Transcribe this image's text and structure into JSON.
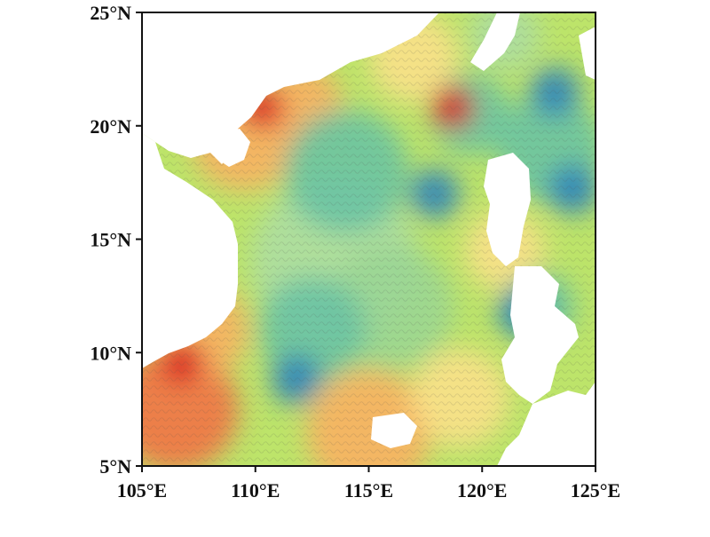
{
  "figure": {
    "type": "contour-map",
    "colormap": "jet",
    "xaxis": {
      "range": [
        105,
        125
      ],
      "unit": "°E",
      "ticks": [
        {
          "value": 105,
          "label": "105°E"
        },
        {
          "value": 110,
          "label": "110°E"
        },
        {
          "value": 115,
          "label": "115°E"
        },
        {
          "value": 120,
          "label": "120°E"
        },
        {
          "value": 125,
          "label": "125°E"
        }
      ]
    },
    "yaxis": {
      "range": [
        5,
        25
      ],
      "unit": "°N",
      "ticks": [
        {
          "value": 5,
          "label": "5°N"
        },
        {
          "value": 10,
          "label": "10°N"
        },
        {
          "value": 15,
          "label": "15°N"
        },
        {
          "value": 20,
          "label": "20°N"
        },
        {
          "value": 25,
          "label": "25°N"
        }
      ]
    },
    "grid": false,
    "legend": "none",
    "field_extremes": [
      {
        "kind": "high",
        "lon": 118.7,
        "lat": 20.8
      },
      {
        "kind": "high",
        "lon": 106.8,
        "lat": 9.6
      },
      {
        "kind": "high",
        "lon": 110.3,
        "lat": 20.8
      },
      {
        "kind": "low",
        "lon": 123.2,
        "lat": 21.5
      },
      {
        "kind": "low",
        "lon": 117.9,
        "lat": 17.0
      },
      {
        "kind": "low",
        "lon": 111.8,
        "lat": 8.8
      },
      {
        "kind": "low",
        "lon": 124.0,
        "lat": 17.2
      },
      {
        "kind": "low",
        "lon": 121.8,
        "lat": 11.8
      }
    ],
    "colors": {
      "high": "#d7191c",
      "mid": "#a6d96a",
      "low": "#2b83ba",
      "axis": "#111111"
    }
  }
}
